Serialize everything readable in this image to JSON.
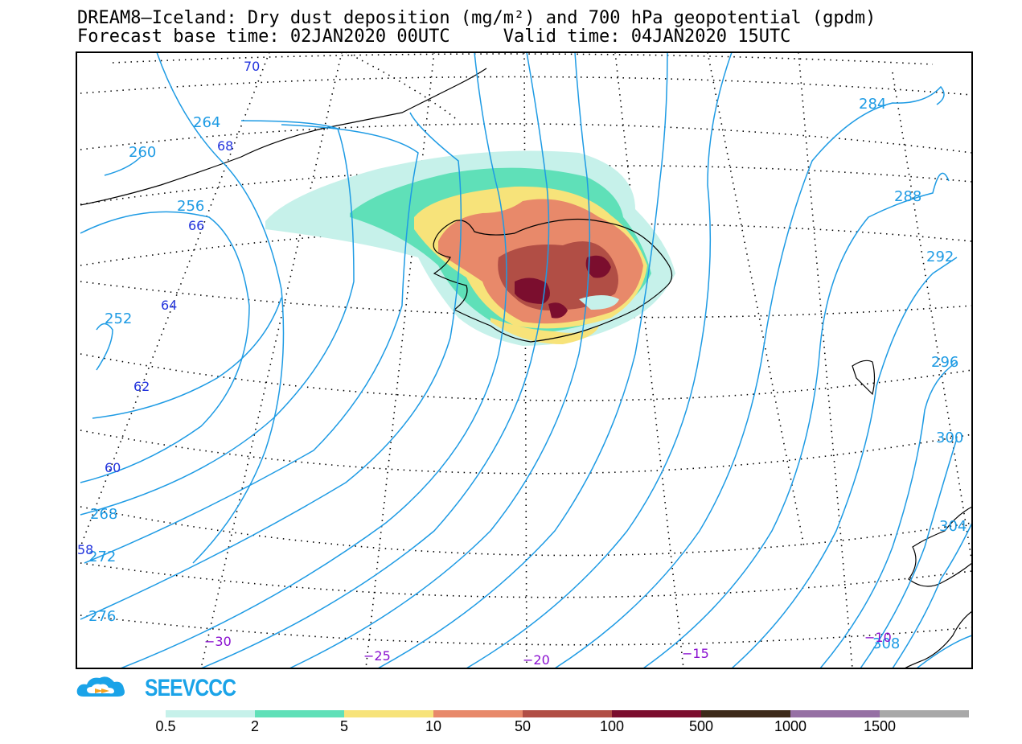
{
  "title": {
    "line1": "DREAM8—Iceland: Dry dust deposition (mg/m²) and 700 hPa geopotential (gpdm)",
    "line2": "Forecast base time: 02JAN2020 00UTC     Valid time: 04JAN2020 15UTC"
  },
  "geopotential_labels": [
    "252",
    "256",
    "260",
    "264",
    "268",
    "272",
    "276",
    "284",
    "288",
    "292",
    "296",
    "300",
    "304",
    "308"
  ],
  "latitude_labels": [
    "70",
    "68",
    "66",
    "64",
    "62",
    "60",
    "58"
  ],
  "longitude_labels": [
    "−30",
    "−25",
    "−20",
    "−15",
    "−10"
  ],
  "brand": {
    "name": "SEEVCCC"
  },
  "colorbar": {
    "colors": [
      "#c6f1ea",
      "#5fe0b8",
      "#f7e37a",
      "#e8896a",
      "#b14e45",
      "#7b0e2e",
      "#3d2a1a",
      "#9670a4",
      "#a8a8a8"
    ],
    "labels": [
      "0.5",
      "2",
      "5",
      "10",
      "50",
      "100",
      "500",
      "1000",
      "1500"
    ]
  },
  "colors": {
    "contour": "#1e9be4",
    "lat_label": "#2233dd",
    "lon_label": "#8a10d0",
    "coast": "#000000"
  }
}
